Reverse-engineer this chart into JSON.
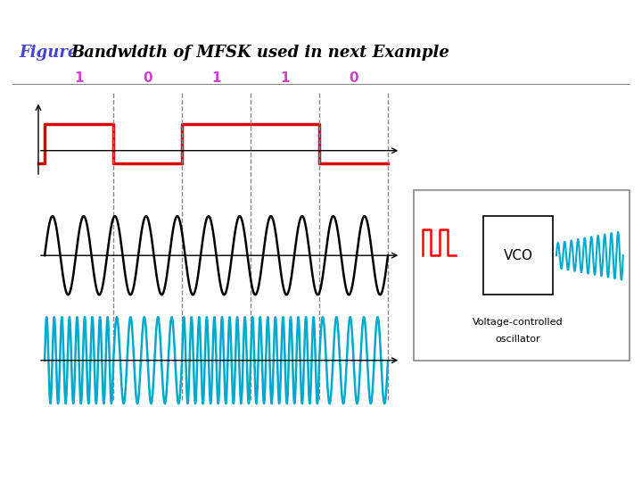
{
  "title_figure": "Figure",
  "title_text": "Bandwidth of MFSK used in next Example",
  "title_figure_color": "#4444cc",
  "title_text_color": "#000000",
  "top_bar_color": "#cc0000",
  "bottom_bar_color": "#cc0000",
  "bg_color": "#ffffff",
  "bit_labels": [
    "1",
    "0",
    "1",
    "1",
    "0"
  ],
  "bit_label_color": "#cc44cc",
  "dashed_color": "#888888",
  "signal_color_red": "#dd0000",
  "signal_color_black": "#000000",
  "signal_color_cyan": "#00aacc"
}
